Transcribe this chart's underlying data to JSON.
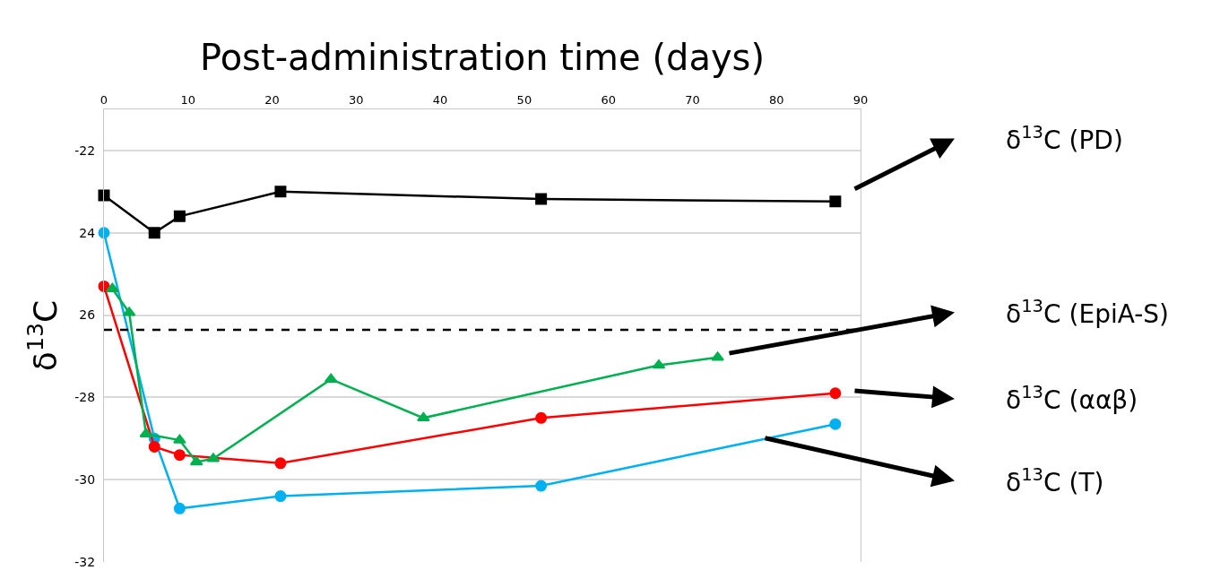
{
  "chart_data": {
    "type": "line",
    "xlabel": "Post-administration time (days)",
    "ylabel": "δ$^{13}$C",
    "xlim": [
      0,
      90
    ],
    "xticks": [
      0,
      10,
      20,
      30,
      40,
      50,
      60,
      70,
      80,
      90
    ],
    "ylim": [
      -32,
      -21
    ],
    "yticks": [
      -32,
      -30,
      -28,
      {
        "value": -26,
        "label": "26"
      },
      {
        "value": -24,
        "label": "24"
      },
      -22
    ],
    "grid": "y",
    "series": [
      {
        "color": "#000000",
        "marker": "square",
        "x": [
          0,
          6,
          9,
          21,
          52,
          87
        ],
        "values": [
          -23.09,
          -24.0,
          -23.6,
          -23.0,
          -23.18,
          -23.24
        ]
      },
      {
        "color": "#00b0f0",
        "marker": "circle",
        "x": [
          0,
          6,
          9,
          21,
          52,
          87
        ],
        "values": [
          -24.0,
          -29.0,
          -30.7,
          -30.4,
          -30.15,
          -28.65
        ]
      },
      {
        "color": "#ff0000",
        "marker": "circle",
        "x": [
          0,
          6,
          9,
          21,
          52,
          87
        ],
        "values": [
          -25.3,
          -29.2,
          -29.4,
          -29.6,
          -28.5,
          -27.9
        ]
      },
      {
        "color": "#00b050",
        "marker": "triangle",
        "x": [
          1,
          3,
          5,
          9,
          11,
          13,
          27,
          38,
          66,
          73
        ],
        "values": [
          -25.36,
          -25.94,
          -28.89,
          -29.04,
          -29.57,
          -29.49,
          -27.56,
          -28.5,
          -27.22,
          -27.03
        ]
      }
    ],
    "ref_lines": [
      {
        "axis": "y",
        "value": -26.36,
        "color": "#000000",
        "line_style": "dashed"
      }
    ],
    "annotations": [
      "δ$^{13}$C (PD)",
      "δ$^{13}$C (EpiA-S)",
      "δ$^{13}$C (ααβ)",
      "δ$^{13}$C (T)"
    ]
  }
}
